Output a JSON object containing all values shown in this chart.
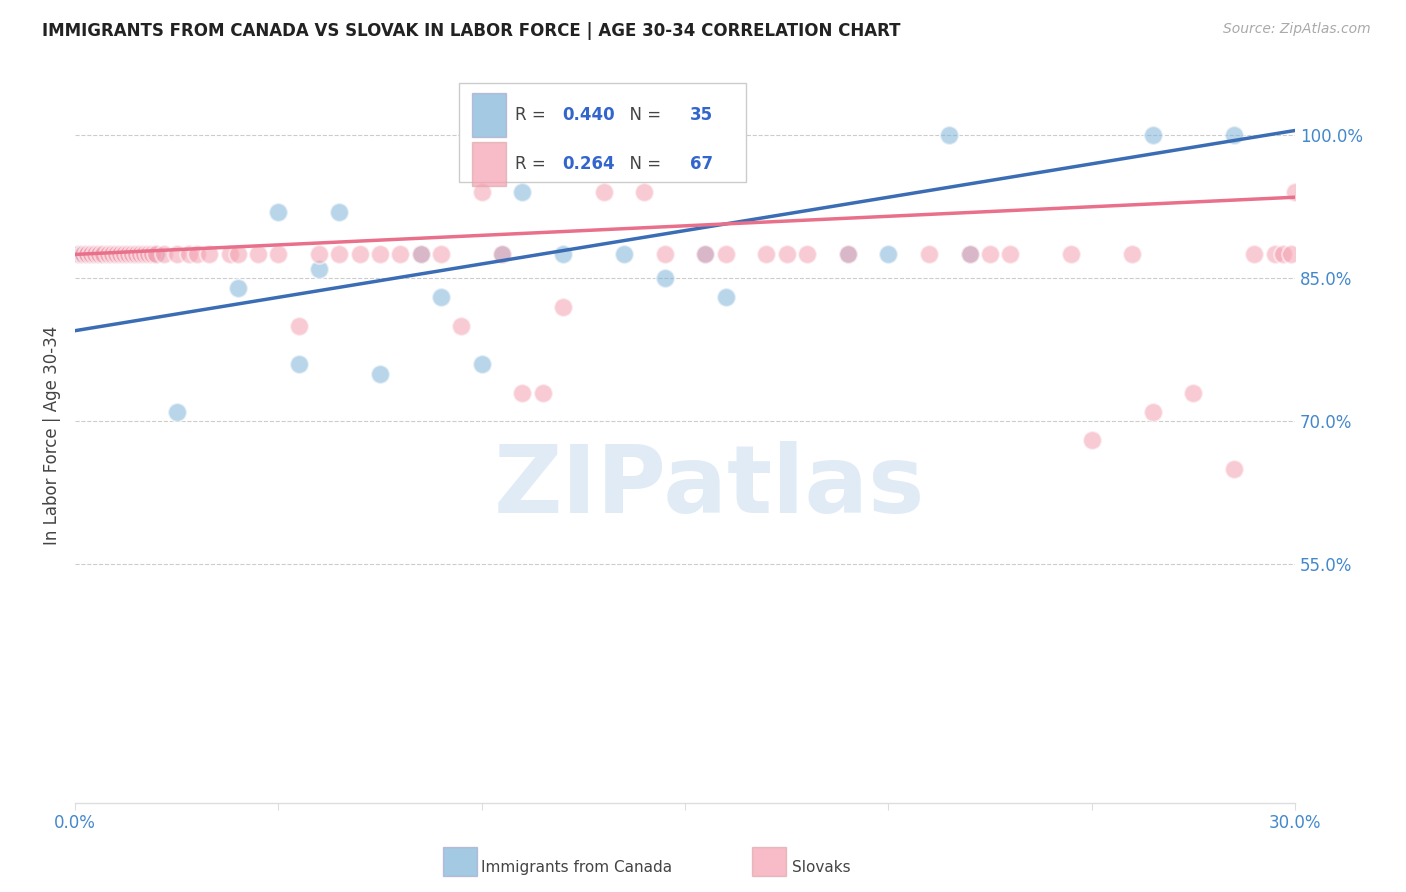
{
  "title": "IMMIGRANTS FROM CANADA VS SLOVAK IN LABOR FORCE | AGE 30-34 CORRELATION CHART",
  "source": "Source: ZipAtlas.com",
  "ylabel": "In Labor Force | Age 30-34",
  "xlim": [
    0.0,
    0.3
  ],
  "ylim": [
    0.3,
    1.07
  ],
  "xticks": [
    0.0,
    0.05,
    0.1,
    0.15,
    0.2,
    0.25,
    0.3
  ],
  "xticklabels": [
    "0.0%",
    "",
    "",
    "",
    "",
    "",
    "30.0%"
  ],
  "yticks": [
    0.55,
    0.7,
    0.85,
    1.0
  ],
  "yticklabels": [
    "55.0%",
    "70.0%",
    "85.0%",
    "100.0%"
  ],
  "blue_R": 0.44,
  "blue_N": 35,
  "pink_R": 0.264,
  "pink_N": 67,
  "blue_color": "#7EB3D8",
  "pink_color": "#F4A0B0",
  "blue_line_color": "#3B6DB5",
  "pink_line_color": "#E8708A",
  "watermark_text": "ZIPatlas",
  "blue_points_x": [
    0.001,
    0.002,
    0.003,
    0.004,
    0.005,
    0.006,
    0.007,
    0.008,
    0.01,
    0.012,
    0.015,
    0.02,
    0.025,
    0.04,
    0.05,
    0.055,
    0.06,
    0.065,
    0.075,
    0.085,
    0.09,
    0.1,
    0.105,
    0.11,
    0.12,
    0.135,
    0.145,
    0.155,
    0.16,
    0.19,
    0.2,
    0.215,
    0.22,
    0.265,
    0.285
  ],
  "blue_points_y": [
    0.875,
    0.875,
    0.875,
    0.875,
    0.875,
    0.875,
    0.875,
    0.875,
    0.875,
    0.875,
    0.875,
    0.875,
    0.71,
    0.84,
    0.92,
    0.76,
    0.86,
    0.92,
    0.75,
    0.875,
    0.83,
    0.76,
    0.875,
    0.94,
    0.875,
    0.875,
    0.85,
    0.875,
    0.83,
    0.875,
    0.875,
    1.0,
    0.875,
    1.0,
    1.0
  ],
  "pink_points_x": [
    0.001,
    0.002,
    0.003,
    0.004,
    0.005,
    0.006,
    0.007,
    0.008,
    0.009,
    0.01,
    0.011,
    0.012,
    0.013,
    0.014,
    0.015,
    0.016,
    0.017,
    0.018,
    0.019,
    0.02,
    0.022,
    0.025,
    0.028,
    0.03,
    0.033,
    0.038,
    0.04,
    0.045,
    0.05,
    0.055,
    0.06,
    0.065,
    0.07,
    0.075,
    0.08,
    0.085,
    0.09,
    0.095,
    0.1,
    0.105,
    0.11,
    0.115,
    0.12,
    0.13,
    0.14,
    0.145,
    0.155,
    0.16,
    0.17,
    0.175,
    0.18,
    0.19,
    0.21,
    0.22,
    0.225,
    0.23,
    0.245,
    0.25,
    0.26,
    0.265,
    0.275,
    0.285,
    0.29,
    0.295,
    0.297,
    0.299,
    0.3
  ],
  "pink_points_y": [
    0.875,
    0.875,
    0.875,
    0.875,
    0.875,
    0.875,
    0.875,
    0.875,
    0.875,
    0.875,
    0.875,
    0.875,
    0.875,
    0.875,
    0.875,
    0.875,
    0.875,
    0.875,
    0.875,
    0.875,
    0.875,
    0.875,
    0.875,
    0.875,
    0.875,
    0.875,
    0.875,
    0.875,
    0.875,
    0.8,
    0.875,
    0.875,
    0.875,
    0.875,
    0.875,
    0.875,
    0.875,
    0.8,
    0.94,
    0.875,
    0.73,
    0.73,
    0.82,
    0.94,
    0.94,
    0.875,
    0.875,
    0.875,
    0.875,
    0.875,
    0.875,
    0.875,
    0.875,
    0.875,
    0.875,
    0.875,
    0.875,
    0.68,
    0.875,
    0.71,
    0.73,
    0.65,
    0.875,
    0.875,
    0.875,
    0.875,
    0.94
  ],
  "background_color": "#FFFFFF",
  "grid_color": "#CCCCCC"
}
